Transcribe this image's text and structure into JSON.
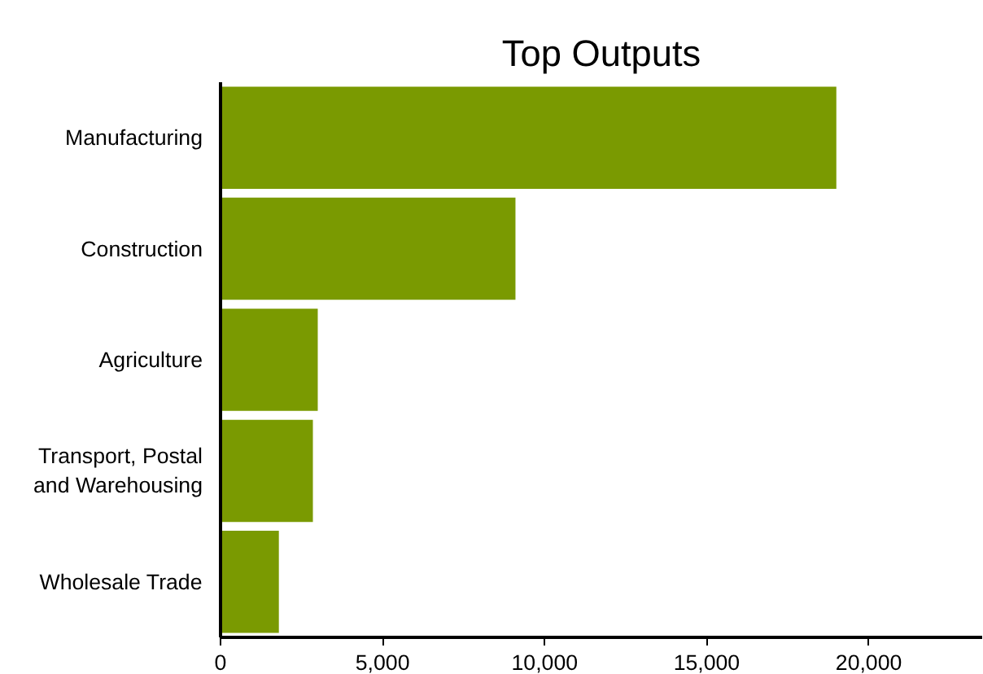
{
  "chart_data": {
    "type": "bar",
    "orientation": "horizontal",
    "title": "Top Outputs",
    "categories": [
      "Manufacturing",
      "Construction",
      "Agriculture",
      "Transport, Postal and Warehousing",
      "Wholesale Trade"
    ],
    "values": [
      19000,
      9100,
      3000,
      2850,
      1800
    ],
    "color": "#7a9a01",
    "xlim": [
      0,
      23500
    ],
    "xticks": [
      {
        "value": 0,
        "label": "0"
      },
      {
        "value": 5000,
        "label": "5,000"
      },
      {
        "value": 10000,
        "label": "10,000"
      },
      {
        "value": 15000,
        "label": "15,000"
      },
      {
        "value": 20000,
        "label": "20,000"
      }
    ],
    "grid": false
  }
}
